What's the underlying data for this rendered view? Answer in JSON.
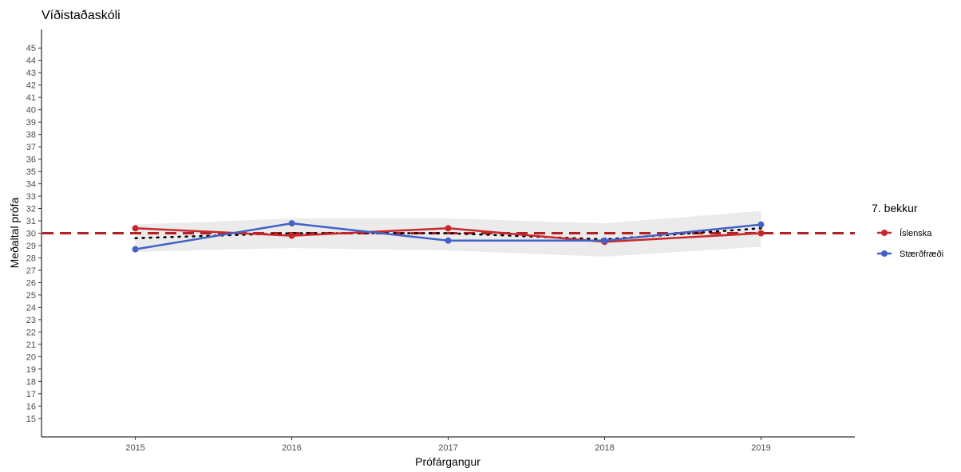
{
  "chart_data": {
    "type": "line",
    "title": "Víðistaðaskóli",
    "xlabel": "Prófárgangur",
    "ylabel": "Meðaltal prófa",
    "x": [
      2015,
      2016,
      2017,
      2018,
      2019
    ],
    "xlim": [
      2014.4,
      2019.6
    ],
    "ylim": [
      13.5,
      46.5
    ],
    "yticks": [
      15,
      16,
      17,
      18,
      19,
      20,
      21,
      22,
      23,
      24,
      25,
      26,
      27,
      28,
      29,
      30,
      31,
      32,
      33,
      34,
      35,
      36,
      37,
      38,
      39,
      40,
      41,
      42,
      43,
      44,
      45
    ],
    "reference_line": {
      "y": 30,
      "style": "dashed",
      "color": "#b22222"
    },
    "trend_line": {
      "style": "dotted",
      "color": "#000000",
      "values": [
        29.6,
        30.0,
        30.0,
        29.5,
        30.4
      ],
      "band_lower": [
        28.5,
        28.8,
        28.6,
        28.1,
        28.9
      ],
      "band_upper": [
        30.7,
        31.2,
        31.2,
        30.8,
        31.8
      ],
      "band_color": "#ebebeb"
    },
    "legend": {
      "title": "7. bekkur",
      "position": "right"
    },
    "series": [
      {
        "name": "Íslenska",
        "color": "#c8282b",
        "values": [
          30.4,
          29.8,
          30.4,
          29.3,
          30.0
        ]
      },
      {
        "name": "Stærðfræði",
        "color": "#4262c7",
        "values": [
          28.7,
          30.8,
          29.4,
          29.4,
          30.7
        ]
      }
    ],
    "grid": false
  }
}
